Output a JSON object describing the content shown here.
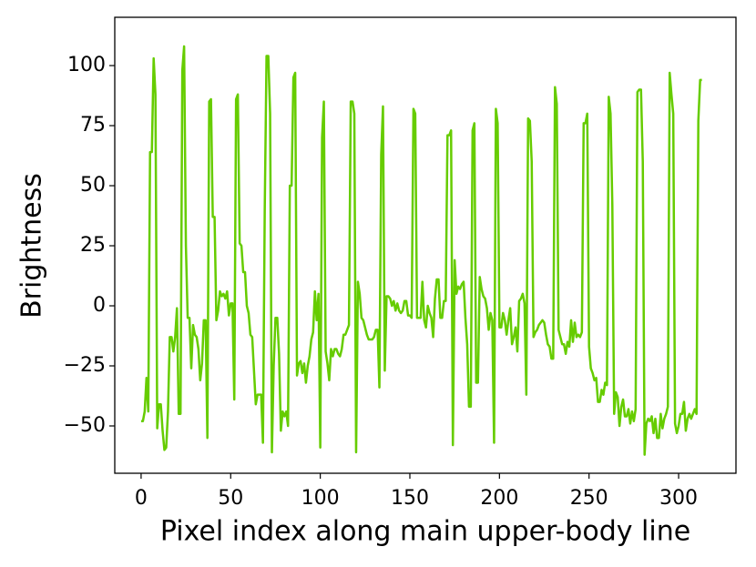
{
  "chart_data": {
    "type": "line",
    "xlabel": "Pixel index along main upper-body line",
    "ylabel": "Brightness",
    "xlim": [
      -14.7,
      332
    ],
    "ylim": [
      -69.7,
      120.1
    ],
    "xticks": [
      0,
      50,
      100,
      150,
      200,
      250,
      300
    ],
    "yticks": [
      {
        "value": -50,
        "label": "−50"
      },
      {
        "value": -25,
        "label": "−25"
      },
      0,
      25,
      50,
      75,
      100
    ],
    "grid": false,
    "x": [
      0,
      1,
      2,
      3,
      4,
      5,
      6,
      7,
      8,
      9,
      10,
      11,
      12,
      13,
      14,
      15,
      16,
      17,
      18,
      19,
      20,
      21,
      22,
      23,
      24,
      25,
      26,
      27,
      28,
      29,
      30,
      31,
      32,
      33,
      34,
      35,
      36,
      37,
      38,
      39,
      40,
      41,
      42,
      43,
      44,
      45,
      46,
      47,
      48,
      49,
      50,
      51,
      52,
      53,
      54,
      55,
      56,
      57,
      58,
      59,
      60,
      61,
      62,
      63,
      64,
      65,
      66,
      67,
      68,
      69,
      70,
      71,
      72,
      73,
      74,
      75,
      76,
      77,
      78,
      79,
      80,
      81,
      82,
      83,
      84,
      85,
      86,
      87,
      88,
      89,
      90,
      91,
      92,
      93,
      94,
      95,
      96,
      97,
      98,
      99,
      100,
      101,
      102,
      103,
      104,
      105,
      106,
      107,
      108,
      109,
      110,
      111,
      112,
      113,
      114,
      115,
      116,
      117,
      118,
      119,
      120,
      121,
      122,
      123,
      124,
      125,
      126,
      127,
      128,
      129,
      130,
      131,
      132,
      133,
      134,
      135,
      136,
      137,
      138,
      139,
      140,
      141,
      142,
      143,
      144,
      145,
      146,
      147,
      148,
      149,
      150,
      151,
      152,
      153,
      154,
      155,
      156,
      157,
      158,
      159,
      160,
      161,
      162,
      163,
      164,
      165,
      166,
      167,
      168,
      169,
      170,
      171,
      172,
      173,
      174,
      175,
      176,
      177,
      178,
      179,
      180,
      181,
      182,
      183,
      184,
      185,
      186,
      187,
      188,
      189,
      190,
      191,
      192,
      193,
      194,
      195,
      196,
      197,
      198,
      199,
      200,
      201,
      202,
      203,
      204,
      205,
      206,
      207,
      208,
      209,
      210,
      211,
      212,
      213,
      214,
      215,
      216,
      217,
      218,
      219,
      220,
      221,
      222,
      223,
      224,
      225,
      226,
      227,
      228,
      229,
      230,
      231,
      232,
      233,
      234,
      235,
      236,
      237,
      238,
      239,
      240,
      241,
      242,
      243,
      244,
      245,
      246,
      247,
      248,
      249,
      250,
      251,
      252,
      253,
      254,
      255,
      256,
      257,
      258,
      259,
      260,
      261,
      262,
      263,
      264,
      265,
      266,
      267,
      268,
      269,
      270,
      271,
      272,
      273,
      274,
      275,
      276,
      277,
      278,
      279,
      280,
      281,
      282,
      283,
      284,
      285,
      286,
      287,
      288,
      289,
      290,
      291,
      292,
      293,
      294,
      295,
      296,
      297,
      298,
      299,
      300,
      301,
      302,
      303,
      304,
      305,
      306,
      307,
      308,
      309,
      310,
      311,
      312,
      313
    ],
    "series": [
      {
        "color": "#66cc00",
        "values": [
          -48,
          -48,
          -44,
          -30,
          -44,
          64,
          64,
          103,
          88,
          -51,
          -41,
          -41,
          -52,
          -60,
          -59,
          -44,
          -13,
          -13,
          -19,
          -13,
          -1,
          -45,
          -45,
          98,
          108,
          25,
          -5,
          -5,
          -26,
          -8,
          -12,
          -13,
          -18,
          -31,
          -24,
          -6,
          -6,
          -55,
          85,
          86,
          37,
          37,
          -6,
          -2,
          6,
          4,
          5,
          3,
          6,
          -4,
          1,
          1,
          -39,
          86,
          88,
          26,
          25,
          14,
          14,
          0,
          -3,
          -12,
          -13,
          -27,
          -41,
          -37,
          -37,
          -37,
          -57,
          40,
          104,
          104,
          80,
          -61,
          -25,
          -5,
          -5,
          -20,
          -52,
          -44,
          -46,
          -44,
          -50,
          50,
          50,
          95,
          97,
          -29,
          -24,
          -23,
          -28,
          -24,
          -32,
          -25,
          -21,
          -14,
          -11,
          6,
          -6,
          5,
          -59,
          70,
          85,
          -19,
          -24,
          -31,
          -18,
          -21,
          -18,
          -18,
          -20,
          -21,
          -18,
          -12,
          -12,
          -10,
          -8,
          85,
          85,
          80,
          -61,
          10,
          5,
          -5,
          -6,
          -9,
          -12,
          -14,
          -14,
          -14,
          -13,
          -10,
          -10,
          -34,
          63,
          83,
          -27,
          4,
          4,
          3,
          0,
          2,
          -2,
          1,
          -2,
          -3,
          -2,
          2,
          2,
          -4,
          -4,
          -5,
          82,
          80,
          -5,
          -5,
          -5,
          10,
          -6,
          -9,
          0,
          -3,
          -5,
          -13,
          3,
          11,
          11,
          -5,
          -5,
          2,
          2,
          71,
          71,
          73,
          -58,
          19,
          5,
          8,
          7,
          9,
          10,
          -5,
          -16,
          -42,
          -42,
          73,
          76,
          -32,
          -32,
          12,
          7,
          4,
          3,
          -1,
          -10,
          -3,
          -6,
          -57,
          82,
          76,
          -9,
          -9,
          -3,
          -6,
          -12,
          -6,
          -1,
          -16,
          -13,
          -9,
          -19,
          2,
          3,
          5,
          1,
          -37,
          78,
          77,
          60,
          -13,
          -11,
          -10,
          -8,
          -7,
          -6,
          -7,
          -12,
          -16,
          -17,
          -22,
          -22,
          91,
          84,
          -10,
          -13,
          -16,
          -16,
          -20,
          -15,
          -17,
          -6,
          -15,
          -7,
          -13,
          -12,
          -13,
          -11,
          76,
          76,
          80,
          -17,
          -26,
          -28,
          -31,
          -30,
          -40,
          -40,
          -35,
          -37,
          -32,
          -33,
          87,
          80,
          42,
          -45,
          -36,
          -38,
          -50,
          -42,
          -39,
          -46,
          -46,
          -43,
          -49,
          -44,
          -48,
          -43,
          89,
          90,
          90,
          60,
          -62,
          -49,
          -47,
          -48,
          -46,
          -53,
          -47,
          -55,
          -55,
          -45,
          -51,
          -47,
          -45,
          -42,
          97,
          88,
          80,
          -49,
          -53,
          -50,
          -45,
          -45,
          -40,
          -52,
          -47,
          -45,
          -47,
          -45,
          -43,
          -45,
          77,
          94,
          94
        ]
      }
    ]
  }
}
